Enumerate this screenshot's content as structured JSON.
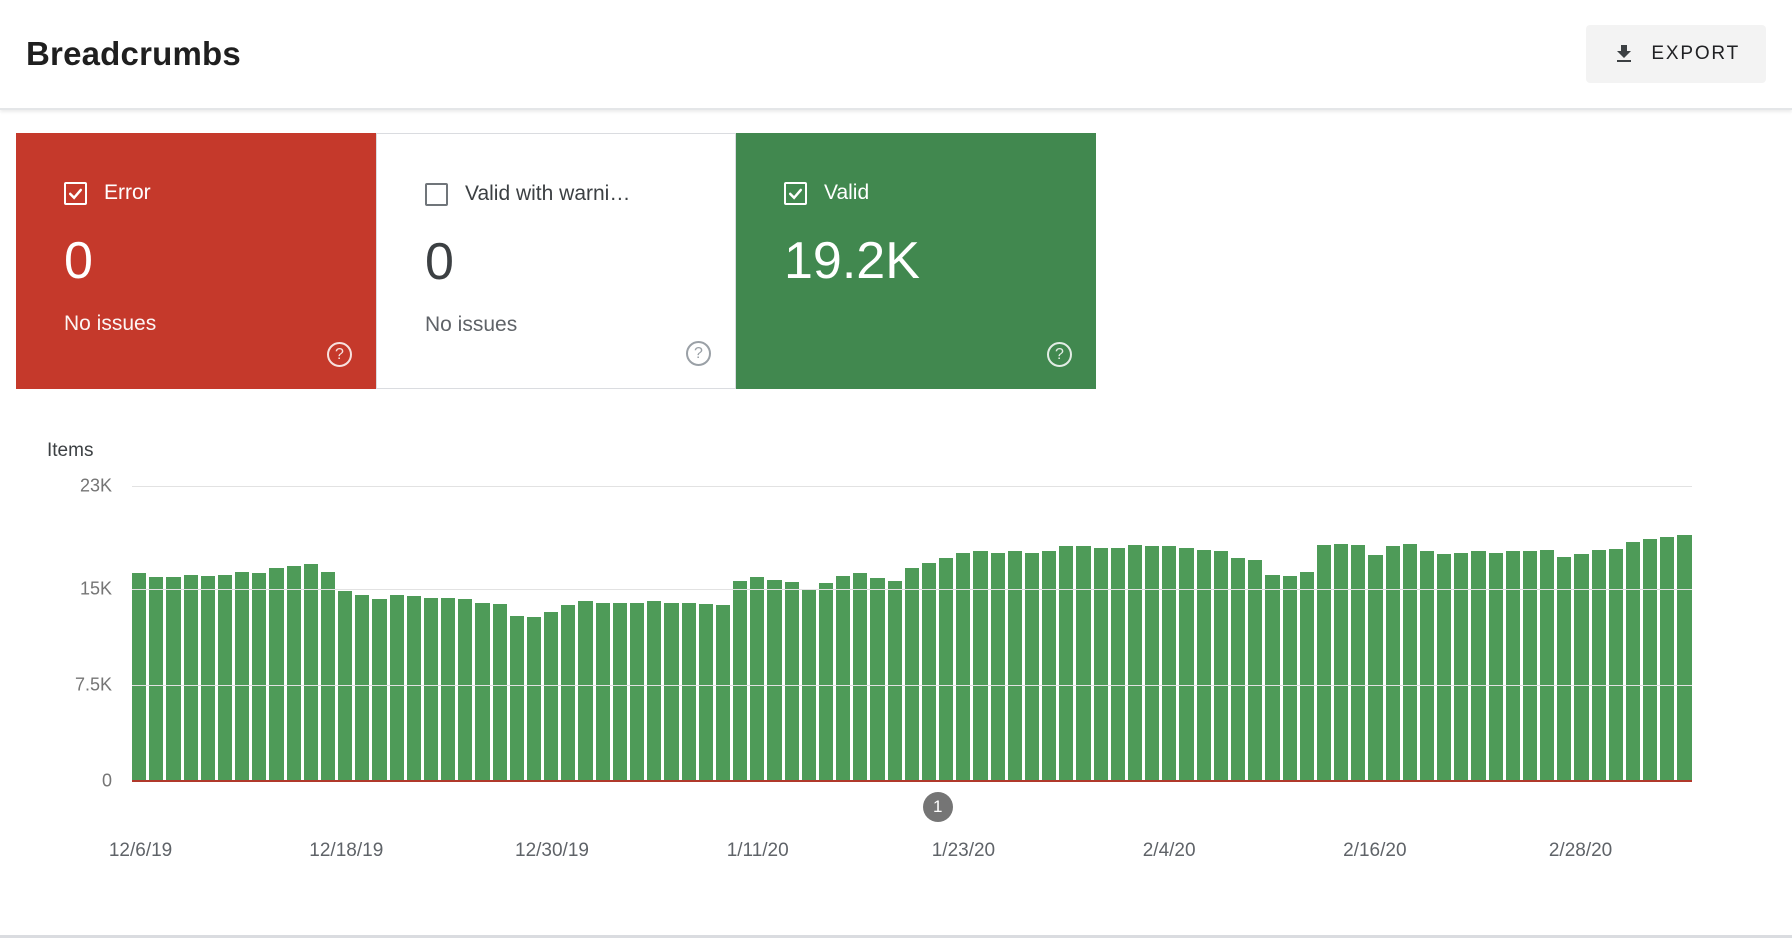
{
  "header": {
    "title": "Breadcrumbs",
    "export_label": "EXPORT"
  },
  "icons": {
    "help": "?"
  },
  "cards": [
    {
      "label": "Error",
      "value": "0",
      "sub": "No issues",
      "checked": true,
      "style": "error"
    },
    {
      "label": "Valid with warnings",
      "value": "0",
      "sub": "No issues",
      "checked": false,
      "style": "neutral"
    },
    {
      "label": "Valid",
      "value": "19.2K",
      "sub": "",
      "checked": true,
      "style": "valid"
    }
  ],
  "colors": {
    "error_red": "#c5392b",
    "valid_green": "#41884f",
    "bar_green": "#4e9b58",
    "grid_line": "#e2e2e2",
    "axis_text": "#757575",
    "annotation_gray": "#757575",
    "zero_line_red": "#b0392b"
  },
  "chart_data": {
    "type": "bar",
    "title": "",
    "xlabel": "",
    "ylabel": "Items",
    "ylim": [
      0,
      23000
    ],
    "grid": true,
    "legend": "none",
    "y_ticks": [
      {
        "label": "23K",
        "value": 23000
      },
      {
        "label": "15K",
        "value": 15000
      },
      {
        "label": "7.5K",
        "value": 7500
      },
      {
        "label": "0",
        "value": 0
      }
    ],
    "x_ticks": [
      {
        "label": "12/6/19",
        "index": 0
      },
      {
        "label": "12/18/19",
        "index": 12
      },
      {
        "label": "12/30/19",
        "index": 24
      },
      {
        "label": "1/11/20",
        "index": 36
      },
      {
        "label": "1/23/20",
        "index": 48
      },
      {
        "label": "2/4/20",
        "index": 60
      },
      {
        "label": "2/16/20",
        "index": 72
      },
      {
        "label": "2/28/20",
        "index": 84
      }
    ],
    "series": [
      {
        "name": "Valid",
        "color": "#4e9b58",
        "values": [
          16200,
          15900,
          15900,
          16100,
          16000,
          16100,
          16300,
          16200,
          16600,
          16800,
          16900,
          16300,
          14800,
          14500,
          14200,
          14500,
          14400,
          14300,
          14300,
          14200,
          13900,
          13800,
          12900,
          12800,
          13200,
          13700,
          14000,
          13900,
          13900,
          13900,
          14000,
          13900,
          13900,
          13800,
          13700,
          15600,
          15900,
          15700,
          15500,
          15000,
          15400,
          16000,
          16200,
          15800,
          15600,
          16600,
          17000,
          17400,
          17800,
          17900,
          17800,
          17900,
          17800,
          17900,
          18300,
          18300,
          18200,
          18200,
          18400,
          18300,
          18300,
          18200,
          18000,
          17900,
          17400,
          17200,
          16100,
          16000,
          16300,
          18400,
          18500,
          18400,
          17600,
          18300,
          18500,
          17900,
          17700,
          17800,
          17900,
          17800,
          17900,
          17900,
          18000,
          17500,
          17700,
          18000,
          18100,
          18600,
          18900,
          19000,
          19200
        ]
      },
      {
        "name": "Error",
        "color": "#b0392b",
        "constant_value": 0
      }
    ],
    "annotation": {
      "label": "1",
      "index": 46.5
    }
  }
}
